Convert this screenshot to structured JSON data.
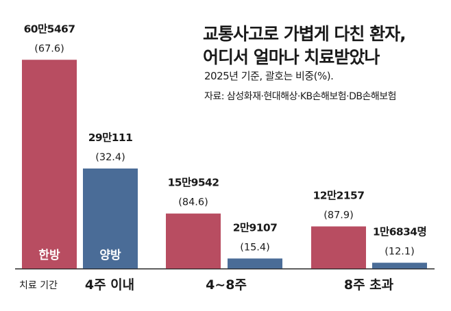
{
  "title_lines": [
    "교통사고로 가볍게 다친 환자,",
    "어디서 얼마나 치료받았나"
  ],
  "subtitle": "2025년 기준, 괄호는 비중(%).",
  "source": "자료: 삼성화재·현대해상·KB손해보험·DB손해보험",
  "axis_label": "치료 기간",
  "colors": {
    "hanbang": "#b84d61",
    "yangbang": "#4a6c97",
    "axis": "#222222"
  },
  "chart_data": {
    "type": "bar",
    "title": "교통사고로 가볍게 다친 환자, 어디서 얼마나 치료받았나",
    "subtitle": "2025년 기준, 괄호는 비중(%).",
    "xlabel": "치료 기간",
    "categories": [
      "4주 이내",
      "4~8주",
      "8주 초과"
    ],
    "ylim": [
      0,
      604000
    ],
    "series": [
      {
        "name": "한방",
        "values": [
          605467,
          159542,
          122157
        ],
        "value_labels": [
          "60만5467",
          "15만9542",
          "12만2157"
        ],
        "share_labels": [
          "(67.6)",
          "(84.6)",
          "(87.9)"
        ]
      },
      {
        "name": "양방",
        "values": [
          290111,
          29107,
          16834
        ],
        "value_labels": [
          "29만111",
          "2만9107",
          "1만6834명"
        ],
        "share_labels": [
          "(32.4)",
          "(15.4)",
          "(12.1)"
        ]
      }
    ]
  }
}
